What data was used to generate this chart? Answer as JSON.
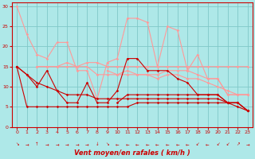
{
  "bg_color": "#aee8e8",
  "grid_color": "#80c8c8",
  "line_color_dark": "#cc0000",
  "line_color_light": "#ff9999",
  "xlabel": "Vent moyen/en rafales ( km/h )",
  "xlabel_color": "#cc0000",
  "tick_color": "#cc0000",
  "xlim": [
    -0.5,
    23.5
  ],
  "ylim": [
    0,
    31
  ],
  "yticks": [
    0,
    5,
    10,
    15,
    20,
    25,
    30
  ],
  "xticks": [
    0,
    1,
    2,
    3,
    4,
    5,
    6,
    7,
    8,
    9,
    10,
    11,
    12,
    13,
    14,
    15,
    16,
    17,
    18,
    19,
    20,
    21,
    22,
    23
  ],
  "lines_light": [
    [
      [
        0,
        30
      ],
      [
        1,
        23
      ],
      [
        2,
        18
      ],
      [
        3,
        17
      ],
      [
        4,
        21
      ],
      [
        5,
        21
      ],
      [
        6,
        14
      ],
      [
        7,
        14
      ],
      [
        8,
        7
      ],
      [
        9,
        16
      ],
      [
        10,
        17
      ],
      [
        11,
        27
      ],
      [
        12,
        27
      ],
      [
        13,
        26
      ],
      [
        14,
        15
      ],
      [
        15,
        25
      ],
      [
        16,
        24
      ],
      [
        17,
        14
      ],
      [
        18,
        18
      ],
      [
        19,
        12
      ],
      [
        20,
        12
      ],
      [
        21,
        8
      ],
      [
        22,
        8
      ],
      [
        23,
        8
      ]
    ],
    [
      [
        2,
        15
      ],
      [
        3,
        15
      ],
      [
        4,
        15
      ],
      [
        5,
        15
      ],
      [
        6,
        15
      ],
      [
        7,
        16
      ],
      [
        8,
        16
      ],
      [
        9,
        15
      ],
      [
        10,
        15
      ],
      [
        11,
        15
      ],
      [
        12,
        15
      ],
      [
        13,
        15
      ],
      [
        14,
        15
      ],
      [
        15,
        15
      ],
      [
        16,
        15
      ],
      [
        17,
        15
      ],
      [
        18,
        15
      ],
      [
        19,
        15
      ],
      [
        20,
        15
      ],
      [
        21,
        15
      ],
      [
        22,
        15
      ],
      [
        23,
        15
      ]
    ],
    [
      [
        2,
        15
      ],
      [
        3,
        15
      ],
      [
        4,
        15
      ],
      [
        5,
        16
      ],
      [
        6,
        15
      ],
      [
        7,
        15
      ],
      [
        8,
        13
      ],
      [
        9,
        13
      ],
      [
        10,
        13
      ],
      [
        11,
        14
      ],
      [
        12,
        13
      ],
      [
        13,
        13
      ],
      [
        14,
        12
      ],
      [
        15,
        13
      ],
      [
        16,
        13
      ],
      [
        17,
        12
      ],
      [
        18,
        12
      ],
      [
        19,
        11
      ],
      [
        20,
        10
      ],
      [
        21,
        9
      ],
      [
        22,
        8
      ],
      [
        23,
        8
      ]
    ],
    [
      [
        9,
        14
      ],
      [
        10,
        13
      ],
      [
        11,
        13
      ],
      [
        12,
        13
      ],
      [
        13,
        13
      ],
      [
        14,
        13
      ],
      [
        15,
        14
      ],
      [
        16,
        14
      ],
      [
        17,
        14
      ],
      [
        18,
        13
      ],
      [
        19,
        12
      ],
      [
        20,
        12
      ],
      [
        21,
        8
      ],
      [
        22,
        8
      ],
      [
        23,
        8
      ]
    ]
  ],
  "lines_dark": [
    [
      [
        0,
        15
      ],
      [
        1,
        13
      ],
      [
        2,
        10
      ],
      [
        3,
        14
      ],
      [
        4,
        9
      ],
      [
        5,
        6
      ],
      [
        6,
        6
      ],
      [
        7,
        11
      ],
      [
        8,
        6
      ],
      [
        9,
        6
      ],
      [
        10,
        9
      ],
      [
        11,
        17
      ],
      [
        12,
        17
      ],
      [
        13,
        14
      ],
      [
        14,
        14
      ],
      [
        15,
        14
      ],
      [
        16,
        12
      ],
      [
        17,
        11
      ],
      [
        18,
        8
      ],
      [
        19,
        8
      ],
      [
        20,
        8
      ],
      [
        21,
        6
      ],
      [
        22,
        6
      ],
      [
        23,
        4
      ]
    ],
    [
      [
        0,
        15
      ],
      [
        1,
        5
      ],
      [
        2,
        5
      ],
      [
        3,
        5
      ],
      [
        4,
        5
      ],
      [
        5,
        5
      ],
      [
        6,
        5
      ],
      [
        7,
        5
      ],
      [
        8,
        5
      ],
      [
        9,
        5
      ],
      [
        10,
        5
      ],
      [
        11,
        5
      ],
      [
        12,
        6
      ],
      [
        13,
        6
      ],
      [
        14,
        6
      ],
      [
        15,
        6
      ],
      [
        16,
        6
      ],
      [
        17,
        6
      ],
      [
        18,
        6
      ],
      [
        19,
        6
      ],
      [
        20,
        6
      ],
      [
        21,
        6
      ],
      [
        22,
        5
      ],
      [
        23,
        4
      ]
    ],
    [
      [
        0,
        15
      ],
      [
        1,
        13
      ],
      [
        2,
        11
      ],
      [
        3,
        10
      ],
      [
        4,
        9
      ],
      [
        5,
        8
      ],
      [
        6,
        8
      ],
      [
        7,
        8
      ],
      [
        8,
        7
      ],
      [
        9,
        7
      ],
      [
        10,
        7
      ],
      [
        11,
        7
      ],
      [
        12,
        7
      ],
      [
        13,
        7
      ],
      [
        14,
        7
      ],
      [
        15,
        7
      ],
      [
        16,
        7
      ],
      [
        17,
        7
      ],
      [
        18,
        7
      ],
      [
        19,
        7
      ],
      [
        20,
        7
      ],
      [
        21,
        6
      ],
      [
        22,
        6
      ],
      [
        23,
        4
      ]
    ],
    [
      [
        10,
        6
      ],
      [
        11,
        8
      ],
      [
        12,
        8
      ],
      [
        13,
        8
      ],
      [
        14,
        8
      ],
      [
        15,
        8
      ],
      [
        16,
        8
      ],
      [
        17,
        8
      ],
      [
        18,
        8
      ],
      [
        19,
        8
      ],
      [
        20,
        8
      ],
      [
        21,
        6
      ],
      [
        22,
        6
      ],
      [
        23,
        4
      ]
    ]
  ],
  "arrows": [
    "↘",
    "→",
    "↑",
    "→",
    "→",
    "→",
    "→",
    "→",
    "↓",
    "↘",
    "←",
    "←",
    "←",
    "←",
    "←",
    "←",
    "←",
    "←",
    "↙",
    "←",
    "↙",
    "↙",
    "↗",
    "→"
  ]
}
